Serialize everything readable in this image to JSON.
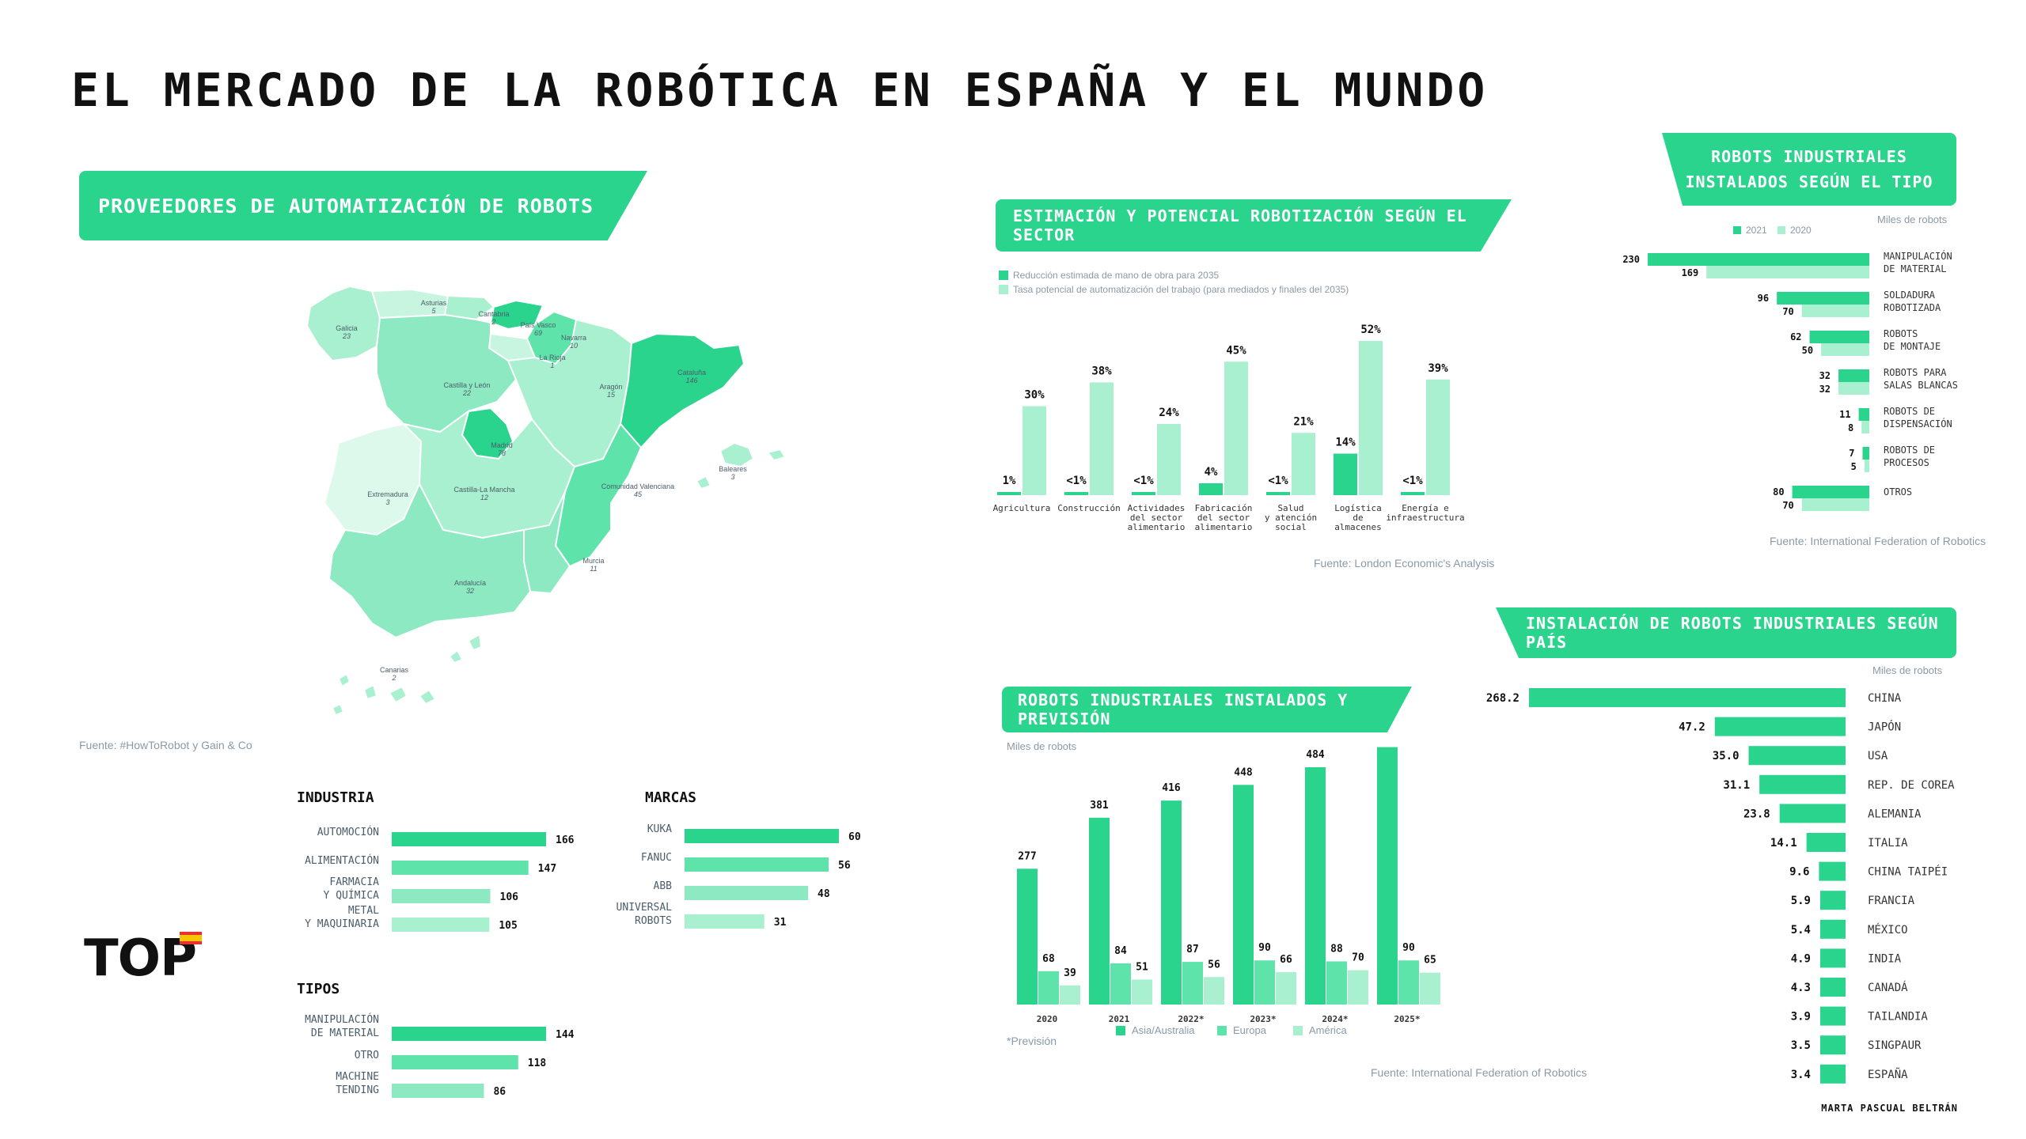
{
  "title": "EL MERCADO DE LA ROBÓTICA EN ESPAÑA Y EL MUNDO",
  "author": "MARTA PASCUAL BELTRÁN",
  "logo_text": "TOP",
  "colors": {
    "green": "#2bd48d",
    "green_mid": "#5ee3aa",
    "green_light": "#a8f0cf",
    "text": "#111111",
    "muted": "#8a9aa8"
  },
  "map_section": {
    "banner": "PROVEEDORES DE AUTOMATIZACIÓN DE ROBOTS",
    "source": "Fuente: #HowToRobot y Gain & Co",
    "regions": [
      {
        "name": "Galicia",
        "value": "23"
      },
      {
        "name": "Asturias",
        "value": "5"
      },
      {
        "name": "Cantabria",
        "value": "2"
      },
      {
        "name": "País Vasco",
        "value": "69"
      },
      {
        "name": "Navarra",
        "value": "10"
      },
      {
        "name": "La Rioja",
        "value": "1"
      },
      {
        "name": "Castilla y León",
        "value": "22"
      },
      {
        "name": "Aragón",
        "value": "15"
      },
      {
        "name": "Cataluña",
        "value": "146"
      },
      {
        "name": "Madrid",
        "value": "78"
      },
      {
        "name": "Extremadura",
        "value": "3"
      },
      {
        "name": "Castilla-La Mancha",
        "value": "12"
      },
      {
        "name": "Comunidad Valenciana",
        "value": "45"
      },
      {
        "name": "Baleares",
        "value": "3"
      },
      {
        "name": "Murcia",
        "value": "11"
      },
      {
        "name": "Andalucía",
        "value": "32"
      },
      {
        "name": "Canarias",
        "value": "2"
      }
    ]
  },
  "chart_data": [
    {
      "id": "industria",
      "type": "bar",
      "title": "INDUSTRIA",
      "categories": [
        "AUTOMOCIÓN",
        "ALIMENTACIÓN",
        "FARMACIA\nY QUÍMICA",
        "METAL\nY MAQUINARIA"
      ],
      "values": [
        166,
        147,
        106,
        105
      ]
    },
    {
      "id": "marcas",
      "type": "bar",
      "title": "MARCAS",
      "categories": [
        "KUKA",
        "FANUC",
        "ABB",
        "UNIVERSAL\nROBOTS"
      ],
      "values": [
        60,
        56,
        48,
        31
      ]
    },
    {
      "id": "tipos",
      "type": "bar",
      "title": "TIPOS",
      "categories": [
        "MANIPULACIÓN\nDE MATERIAL",
        "OTRO",
        "MACHINE\nTENDING"
      ],
      "values": [
        144,
        118,
        86
      ]
    },
    {
      "id": "sector",
      "type": "bar",
      "title": "ESTIMACIÓN Y POTENCIAL ROBOTIZACIÓN SEGÚN EL SECTOR",
      "source": "Fuente: London Economic's Analysis",
      "categories": [
        "Agricultura",
        "Construcción",
        "Actividades\ndel sector\nalimentario",
        "Fabricación\ndel sector\nalimentario",
        "Salud\ny atención\nsocial",
        "Logística\nde\nalmacenes",
        "Energía e\ninfraestructura"
      ],
      "series": [
        {
          "name": "Reducción estimada de mano de obra para 2035",
          "values": [
            1,
            0.5,
            0.5,
            4,
            0.5,
            14,
            0.5
          ],
          "labels": [
            "1%",
            "<1%",
            "<1%",
            "4%",
            "<1%",
            "14%",
            "<1%"
          ]
        },
        {
          "name": "Tasa potencial de automatización del trabajo (para mediados y finales del 2035)",
          "values": [
            30,
            38,
            24,
            45,
            21,
            52,
            39
          ],
          "labels": [
            "30%",
            "38%",
            "24%",
            "45%",
            "21%",
            "52%",
            "39%"
          ]
        }
      ],
      "ylim": [
        0,
        52
      ]
    },
    {
      "id": "tipo_mundial",
      "type": "bar",
      "title": "ROBOTS INDUSTRIALES INSTALADOS SEGÚN EL TIPO",
      "unit": "Miles de robots",
      "source": "Fuente: International Federation of Robotics",
      "categories": [
        "MANIPULACIÓN\nDE MATERIAL",
        "SOLDADURA\nROBOTIZADA",
        "ROBOTS\nDE MONTAJE",
        "ROBOTS PARA\nSALAS BLANCAS",
        "ROBOTS DE\nDISPENSACIÓN",
        "ROBOTS DE\nPROCESOS",
        "OTROS"
      ],
      "series": [
        {
          "name": "2021",
          "values": [
            230,
            96,
            62,
            32,
            11,
            7,
            80
          ]
        },
        {
          "name": "2020",
          "values": [
            169,
            70,
            50,
            32,
            8,
            5,
            70
          ]
        }
      ]
    },
    {
      "id": "prevision",
      "type": "bar",
      "title": "ROBOTS INDUSTRIALES INSTALADOS Y PREVISIÓN",
      "unit": "Miles de robots",
      "note": "*Previsión",
      "source": "Fuente: International Federation of Robotics",
      "categories": [
        "2020",
        "2021",
        "2022*",
        "2023*",
        "2024*",
        "2025*"
      ],
      "series": [
        {
          "name": "Asia/Australia",
          "values": [
            277,
            381,
            416,
            448,
            484,
            525
          ]
        },
        {
          "name": "Europa",
          "values": [
            68,
            84,
            87,
            90,
            88,
            90
          ]
        },
        {
          "name": "América",
          "values": [
            39,
            51,
            56,
            66,
            70,
            65
          ]
        }
      ]
    },
    {
      "id": "pais",
      "type": "bar",
      "title": "INSTALACIÓN DE ROBOTS INDUSTRIALES SEGÚN PAÍS",
      "unit": "Miles de robots",
      "categories": [
        "CHINA",
        "JAPÓN",
        "USA",
        "REP. DE COREA",
        "ALEMANIA",
        "ITALIA",
        "CHINA TAIPÉI",
        "FRANCIA",
        "MÉXICO",
        "INDIA",
        "CANADÁ",
        "TAILANDIA",
        "SINGPAUR",
        "ESPAÑA"
      ],
      "values": [
        268.2,
        47.2,
        35.0,
        31.1,
        23.8,
        14.1,
        9.6,
        5.9,
        5.4,
        4.9,
        4.3,
        3.9,
        3.5,
        3.4
      ],
      "labels": [
        "268.2",
        "47.2",
        "35.0",
        "31.1",
        "23.8",
        "14.1",
        "9.6",
        "5.9",
        "5.4",
        "4.9",
        "4.3",
        "3.9",
        "3.5",
        "3.4"
      ]
    }
  ]
}
